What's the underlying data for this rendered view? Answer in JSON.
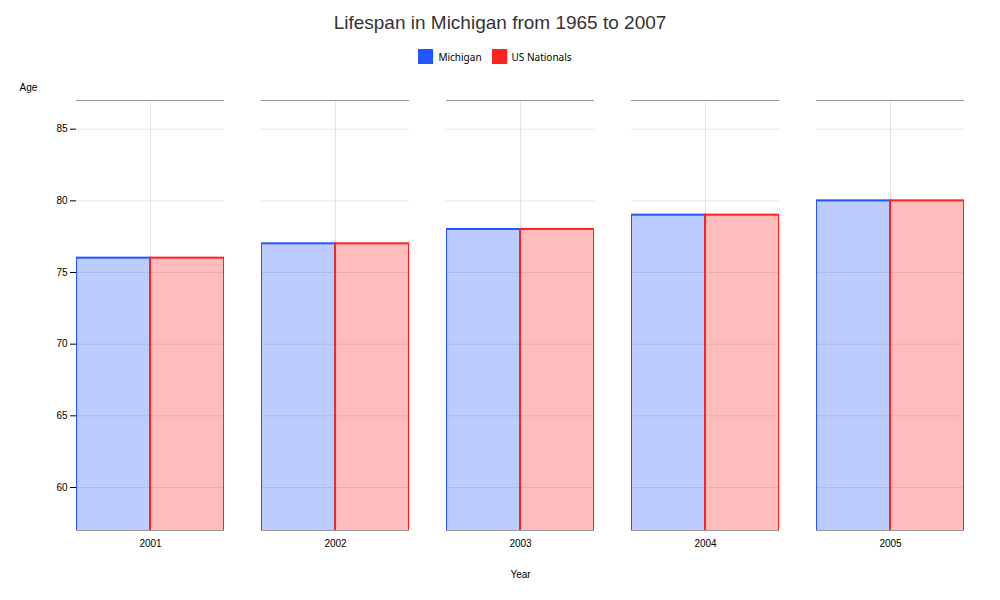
{
  "chart_data": {
    "type": "bar",
    "title": "Lifespan in Michigan from 1965 to 2007",
    "xlabel": "Year",
    "ylabel": "Age",
    "categories": [
      "2001",
      "2002",
      "2003",
      "2004",
      "2005"
    ],
    "series": [
      {
        "name": "Michigan",
        "color": "#2255ff",
        "values": [
          76,
          77,
          78,
          79,
          80
        ]
      },
      {
        "name": "US Nationals",
        "color": "#ff2222",
        "values": [
          76,
          77,
          78,
          79,
          80
        ]
      }
    ],
    "ylim": [
      57,
      87
    ],
    "yticks": [
      60,
      65,
      70,
      75,
      80,
      85
    ],
    "grid": true,
    "legend": "top"
  }
}
